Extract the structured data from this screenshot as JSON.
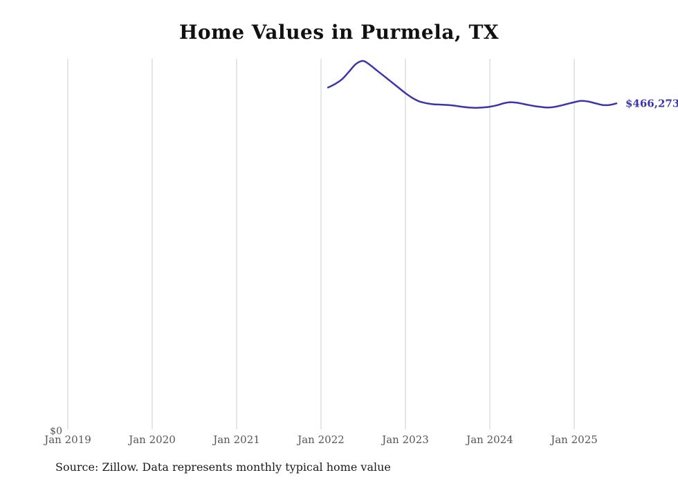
{
  "title": "Home Values in Purmela, TX",
  "source_note": "Source: Zillow. Data represents monthly typical home value",
  "y_zero_label": "$0",
  "end_label": "$466,273",
  "colors": {
    "line": "#3b35ad",
    "grid": "#cccccc",
    "tick_text": "#555555",
    "title_text": "#111111"
  },
  "chart_data": {
    "type": "line",
    "title": "Home Values in Purmela, TX",
    "xlabel": "",
    "ylabel": "",
    "ylim": [
      0,
      530000
    ],
    "grid": "vertical-only",
    "legend": "none",
    "x_tick_labels": [
      "Jan 2019",
      "Jan 2020",
      "Jan 2021",
      "Jan 2022",
      "Jan 2023",
      "Jan 2024",
      "Jan 2025"
    ],
    "y_tick_labels": [
      "$0"
    ],
    "end_label": "$466,273",
    "series_name": "Typical home value",
    "x": [
      "2022-02",
      "2022-03",
      "2022-04",
      "2022-05",
      "2022-06",
      "2022-07",
      "2022-08",
      "2022-09",
      "2022-10",
      "2022-11",
      "2022-12",
      "2023-01",
      "2023-02",
      "2023-03",
      "2023-04",
      "2023-05",
      "2023-06",
      "2023-07",
      "2023-08",
      "2023-09",
      "2023-10",
      "2023-11",
      "2023-12",
      "2024-01",
      "2024-02",
      "2024-03",
      "2024-04",
      "2024-05",
      "2024-06",
      "2024-07",
      "2024-08",
      "2024-09",
      "2024-10",
      "2024-11",
      "2024-12",
      "2025-01",
      "2025-02",
      "2025-03",
      "2025-04",
      "2025-05",
      "2025-06",
      "2025-07"
    ],
    "values": [
      489000,
      494000,
      501000,
      512000,
      523000,
      527000,
      521000,
      513000,
      505000,
      497000,
      489000,
      481000,
      474000,
      469000,
      466500,
      465000,
      464500,
      464000,
      463000,
      461500,
      460500,
      460000,
      460500,
      461500,
      463500,
      466500,
      468000,
      467000,
      465000,
      463000,
      461500,
      460500,
      461000,
      463000,
      465500,
      468000,
      470000,
      469000,
      466500,
      464000,
      464000,
      466273
    ]
  }
}
